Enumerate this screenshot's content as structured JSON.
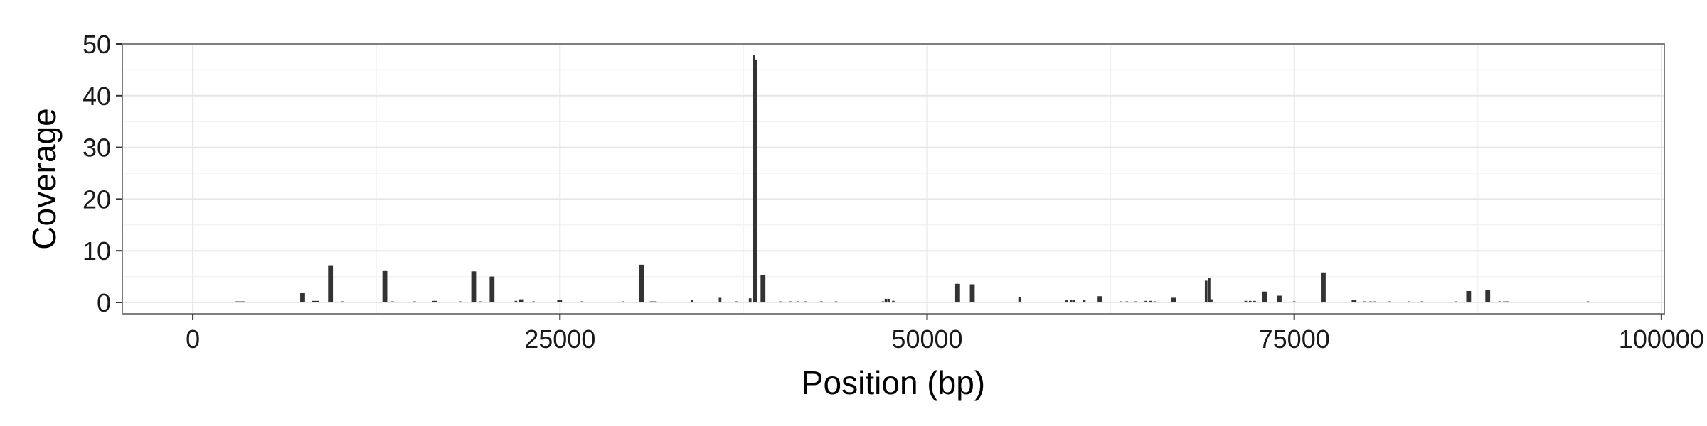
{
  "chart_data": {
    "type": "bar",
    "title": "",
    "xlabel": "Position (bp)",
    "ylabel": "Coverage",
    "xlim": [
      -4800,
      100200
    ],
    "ylim": [
      -2.2,
      50
    ],
    "xticks": [
      0,
      25000,
      50000,
      75000,
      100000
    ],
    "xtick_labels": [
      "0",
      "25000",
      "50000",
      "75000",
      "100000"
    ],
    "yticks": [
      0,
      10,
      20,
      30,
      40,
      50
    ],
    "ytick_labels": [
      "0",
      "10",
      "20",
      "30",
      "40",
      "50"
    ],
    "grid": true,
    "legend": "none",
    "bar_color": "#333333",
    "panel_border_color": "#7f7f7f",
    "grid_major_color": "#e6e6e6",
    "grid_minor_color": "#f3f3f3",
    "bar_width": 180,
    "series": [
      {
        "x": [
          3000,
          3150,
          3300,
          3450,
          7400,
          7550,
          8200,
          8350,
          8500,
          9300,
          9450,
          10200,
          13000,
          13150,
          13600,
          15100,
          16400,
          16550,
          18200,
          19050,
          19200,
          19600,
          20300,
          20450,
          22000,
          22300,
          22450,
          23200,
          24900,
          25050,
          26500,
          29300,
          30500,
          30650,
          31200,
          31350,
          31500,
          34000,
          35900,
          37000,
          37950,
          38200,
          38350,
          38750,
          38900,
          40000,
          40700,
          41200,
          41700,
          42800,
          43800,
          47000,
          47200,
          47400,
          47700,
          52000,
          52150,
          53000,
          53150,
          56300,
          59500,
          59800,
          60000,
          60700,
          61700,
          61850,
          63200,
          63600,
          64200,
          64900,
          65200,
          65500,
          66700,
          66850,
          69000,
          69200,
          69350,
          71700,
          72000,
          72300,
          72900,
          73050,
          73900,
          74050,
          75000,
          76900,
          77050,
          79000,
          79150,
          79800,
          80200,
          80500,
          81500,
          82800,
          83700,
          86000,
          86800,
          86950,
          88100,
          88250,
          89000,
          89300,
          89500,
          95000
        ],
        "values": [
          0.2,
          0.2,
          0.2,
          0.2,
          1.8,
          1.8,
          0.3,
          0.3,
          0.3,
          7.2,
          7.2,
          0.2,
          6.2,
          6.2,
          0.2,
          0.2,
          0.3,
          0.3,
          0.2,
          6.0,
          6.0,
          0.2,
          5.0,
          5.0,
          0.3,
          0.6,
          0.6,
          0.2,
          0.5,
          0.5,
          0.2,
          0.2,
          7.3,
          7.3,
          0.2,
          0.2,
          0.2,
          0.5,
          0.9,
          0.2,
          0.8,
          47.8,
          47.0,
          5.3,
          5.3,
          0.2,
          0.2,
          0.2,
          0.2,
          0.2,
          0.2,
          0.2,
          0.7,
          0.7,
          0.3,
          3.6,
          3.6,
          3.5,
          3.5,
          1.0,
          0.4,
          0.5,
          0.5,
          0.5,
          1.2,
          1.2,
          0.2,
          0.2,
          0.2,
          0.3,
          0.3,
          0.2,
          0.9,
          0.9,
          4.2,
          4.8,
          0.6,
          0.3,
          0.3,
          0.3,
          2.1,
          2.1,
          1.3,
          1.3,
          0.2,
          5.8,
          5.8,
          0.5,
          0.5,
          0.2,
          0.2,
          0.2,
          0.2,
          0.2,
          0.2,
          0.2,
          2.2,
          2.2,
          2.4,
          2.4,
          0.2,
          0.2,
          0.2,
          0.2
        ]
      }
    ]
  }
}
